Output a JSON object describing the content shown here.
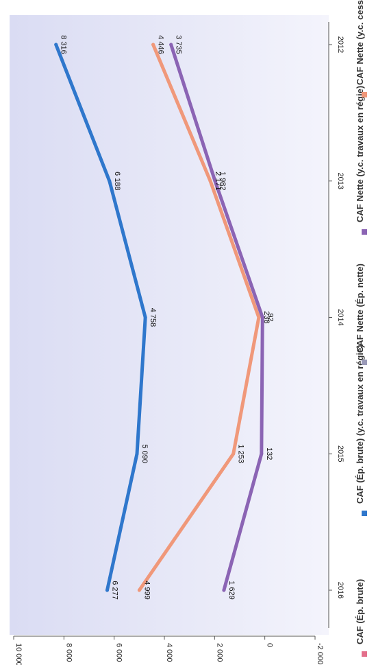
{
  "chart_data": {
    "type": "line",
    "orientation": "rotated-90-cw",
    "title": "",
    "xlabel": "",
    "ylabel": "",
    "categories": [
      "2012",
      "2013",
      "2014",
      "2015",
      "2016"
    ],
    "ylim": [
      -2000,
      10000
    ],
    "yticks": [
      -2000,
      0,
      2000,
      4000,
      6000,
      8000,
      10000
    ],
    "ytick_labels": [
      "-2 000",
      "0",
      "2 000",
      "4 000",
      "6 000",
      "8 000",
      "10 000"
    ],
    "grid": false,
    "legend_position": "bottom",
    "series": [
      {
        "name": "CAF Nette (y.c. cessions)",
        "color": "#f0987a",
        "values": [
          4446,
          2171,
          238,
          1253,
          4999
        ],
        "labels": [
          "4 446",
          "2 171",
          "238",
          "1 253",
          "4 999"
        ]
      },
      {
        "name": "CAF Nette (y.c. travaux en régie)",
        "color": "#8b64b4",
        "values": [
          3735,
          1982,
          92,
          132,
          1629
        ],
        "labels": [
          "3 735",
          "1 982",
          "92",
          "132",
          "1 629"
        ]
      },
      {
        "name": "CAF (Ép. brute) (y.c. travaux en régie)",
        "color": "#2f77cc",
        "values": [
          8316,
          6188,
          4758,
          5090,
          6277
        ],
        "labels": [
          "8 316",
          "6 188",
          "4 758",
          "5 090",
          "6 277"
        ]
      }
    ],
    "legend": [
      {
        "label": "CAF (Ép. brute)",
        "color": "#e36f8b"
      },
      {
        "label": "CAF (Ép. brute) (y.c. travaux en régie)",
        "color": "#2f77cc"
      },
      {
        "label": "CAF Nette (Ép. nette)",
        "color": "#9a9ab8"
      },
      {
        "label": "CAF Nette (y.c. travaux en régie)",
        "color": "#8b64b4"
      },
      {
        "label": "CAF Nette (y.c. cessions)",
        "color": "#f0987a"
      }
    ]
  }
}
